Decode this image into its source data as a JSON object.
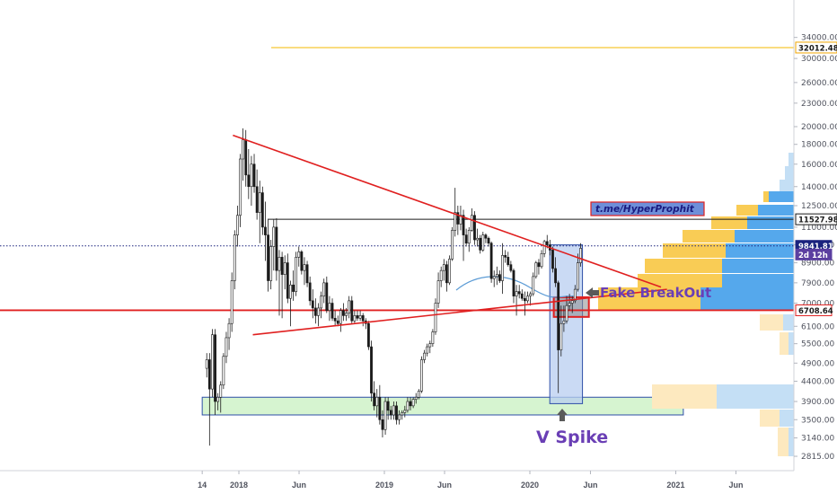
{
  "chart_data": {
    "type": "candlestick",
    "symbol_scale": "log",
    "x_ticks": [
      "14",
      "2018",
      "Jun",
      "2019",
      "Jun",
      "2020",
      "Jun",
      "2021",
      "Jun"
    ],
    "y_ticks": [
      "34000.00",
      "30000.00",
      "26000.00",
      "23000.00",
      "20000.00",
      "18000.00",
      "16000.00",
      "14000.00",
      "12500.00",
      "11000.00",
      "9900.00",
      "8900.00",
      "7900.00",
      "7000.00",
      "6100.00",
      "5500.00",
      "4900.00",
      "4400.00",
      "3900.00",
      "3500.00",
      "3140.00",
      "2815.00"
    ],
    "price_badges": [
      {
        "label": "32012.48",
        "price": 32012,
        "bg": "#ffffff",
        "fg": "#1a1a1a",
        "border": "#f0a500"
      },
      {
        "label": "11527.98",
        "price": 11528,
        "bg": "#ffffff",
        "fg": "#1a1a1a",
        "border": "#1a1a1a"
      },
      {
        "label": "9841.81",
        "price": 9842,
        "bg": "#1a237e",
        "fg": "#ffffff",
        "border": "#1a237e"
      },
      {
        "label": "2d 12h",
        "price": 9350,
        "bg": "#5b3fa0",
        "fg": "#ffffff",
        "border": "#5b3fa0"
      },
      {
        "label": "6708.64",
        "price": 6709,
        "bg": "#ffffff",
        "fg": "#1a1a1a",
        "border": "#e02020"
      }
    ],
    "annotations": {
      "fake_breakout": "Fake BreakOut",
      "v_spike": "V Spike",
      "telegram": "t.me/HyperProphit"
    },
    "levels": [
      {
        "name": "orange",
        "price": 32012,
        "color": "#f5b800"
      },
      {
        "name": "resistance",
        "price": 11528,
        "color": "#1a1a1a"
      },
      {
        "name": "current",
        "price": 9842,
        "color": "#1a237e",
        "style": "dotted"
      },
      {
        "name": "support",
        "price": 6709,
        "color": "#e02020"
      }
    ],
    "trendlines": [
      {
        "from": [
          "2017-12-17",
          19000
        ],
        "to": [
          "2020-11-25",
          7700
        ],
        "color": "#e02020"
      },
      {
        "from": [
          "2018-02-05",
          5800
        ],
        "to": [
          "2020-12-10",
          7600
        ],
        "color": "#e02020"
      }
    ],
    "zones": [
      {
        "name": "demand-zone",
        "from": "2017-10-01",
        "to": "2021-01-20",
        "low": 3600,
        "high": 4000,
        "color": "#c8f0c0"
      },
      {
        "name": "v-spike-box",
        "from": "2020-02-20",
        "to": "2020-05-12",
        "low": 3850,
        "high": 9900,
        "color": "#b8cdf0"
      },
      {
        "name": "fake-breakout-box",
        "from": "2020-03-01",
        "to": "2020-05-28",
        "low": 6450,
        "high": 7250,
        "color": "#8c8c8c"
      }
    ],
    "candles": [
      [
        "2017-10-09",
        4750,
        5200,
        4500,
        5000
      ],
      [
        "2017-10-16",
        5000,
        5200,
        3000,
        4200
      ],
      [
        "2017-10-23",
        4200,
        6000,
        4000,
        5800
      ],
      [
        "2017-10-30",
        5800,
        6000,
        3600,
        3900
      ],
      [
        "2017-11-06",
        3900,
        4100,
        3700,
        4000
      ],
      [
        "2017-11-13",
        4000,
        4400,
        3650,
        4300
      ],
      [
        "2017-11-20",
        4300,
        5200,
        4200,
        5100
      ],
      [
        "2017-11-27",
        5100,
        5900,
        4900,
        5700
      ],
      [
        "2017-12-04",
        5700,
        6400,
        5300,
        6200
      ],
      [
        "2017-12-11",
        6200,
        8400,
        5900,
        8000
      ],
      [
        "2017-12-18",
        8000,
        10800,
        7600,
        10500
      ],
      [
        "2017-12-25",
        10500,
        12500,
        9800,
        11800
      ],
      [
        "2018-01-01",
        11800,
        17000,
        11000,
        16500
      ],
      [
        "2018-01-08",
        16500,
        19800,
        14500,
        18500
      ],
      [
        "2018-01-15",
        18500,
        19600,
        14000,
        15000
      ],
      [
        "2018-01-22",
        15000,
        17500,
        13000,
        14000
      ],
      [
        "2018-01-29",
        14000,
        16800,
        12500,
        16000
      ],
      [
        "2018-02-05",
        16000,
        17000,
        13500,
        14000
      ],
      [
        "2018-02-12",
        14000,
        15500,
        11500,
        12000
      ],
      [
        "2018-02-19",
        12000,
        14500,
        10000,
        13500
      ],
      [
        "2018-02-26",
        13500,
        14000,
        10500,
        11000
      ],
      [
        "2018-03-05",
        11000,
        12800,
        9000,
        10500
      ],
      [
        "2018-03-12",
        10500,
        11500,
        7500,
        8000
      ],
      [
        "2018-03-19",
        8000,
        10200,
        7600,
        9800
      ],
      [
        "2018-03-26",
        9800,
        11500,
        8500,
        11000
      ],
      [
        "2018-04-02",
        11000,
        11600,
        8000,
        8500
      ],
      [
        "2018-04-09",
        8500,
        9600,
        6500,
        9200
      ],
      [
        "2018-04-16",
        9200,
        9500,
        6400,
        8300
      ],
      [
        "2018-04-23",
        8300,
        9300,
        7600,
        8900
      ],
      [
        "2018-04-30",
        8900,
        9400,
        7000,
        7200
      ],
      [
        "2018-05-07",
        7200,
        8000,
        6100,
        7800
      ],
      [
        "2018-05-14",
        7800,
        8500,
        7100,
        7500
      ],
      [
        "2018-05-21",
        7500,
        9500,
        7300,
        9200
      ],
      [
        "2018-05-28",
        9200,
        9800,
        8700,
        9500
      ],
      [
        "2018-06-04",
        9500,
        9600,
        8300,
        8500
      ],
      [
        "2018-06-11",
        8500,
        9200,
        7800,
        8800
      ],
      [
        "2018-06-18",
        8800,
        9000,
        7700,
        7900
      ],
      [
        "2018-06-25",
        7900,
        8200,
        6900,
        7100
      ],
      [
        "2018-07-02",
        7100,
        7600,
        6400,
        6800
      ],
      [
        "2018-07-09",
        6800,
        7200,
        6200,
        6500
      ],
      [
        "2018-07-16",
        6500,
        7000,
        6100,
        6800
      ],
      [
        "2018-07-23",
        6800,
        7500,
        6400,
        7300
      ],
      [
        "2018-07-30",
        7300,
        8100,
        7000,
        7900
      ],
      [
        "2018-08-06",
        7900,
        8200,
        6600,
        6700
      ],
      [
        "2018-08-13",
        6700,
        7300,
        6300,
        7000
      ],
      [
        "2018-08-20",
        7000,
        7200,
        6300,
        6400
      ],
      [
        "2018-08-27",
        6400,
        6700,
        6100,
        6300
      ],
      [
        "2018-09-03",
        6300,
        6500,
        6100,
        6200
      ],
      [
        "2018-09-10",
        6200,
        6800,
        5900,
        6700
      ],
      [
        "2018-09-17",
        6700,
        7000,
        6300,
        6500
      ],
      [
        "2018-09-24",
        6500,
        6800,
        6300,
        6600
      ],
      [
        "2018-10-01",
        6600,
        7300,
        6400,
        7100
      ],
      [
        "2018-10-08",
        7100,
        7300,
        6200,
        6300
      ],
      [
        "2018-10-15",
        6300,
        6700,
        6200,
        6500
      ],
      [
        "2018-10-22",
        6500,
        6700,
        6300,
        6400
      ],
      [
        "2018-10-29",
        6400,
        6700,
        6300,
        6500
      ],
      [
        "2018-11-05",
        6500,
        6600,
        6100,
        6300
      ],
      [
        "2018-11-12",
        6300,
        6400,
        6000,
        6200
      ],
      [
        "2018-11-19",
        6200,
        6300,
        5300,
        5400
      ],
      [
        "2018-11-26",
        5400,
        5600,
        3900,
        4100
      ],
      [
        "2018-12-03",
        4100,
        4400,
        3700,
        3800
      ],
      [
        "2018-12-10",
        3800,
        4200,
        3550,
        4000
      ],
      [
        "2018-12-17",
        4000,
        4300,
        3400,
        3500
      ],
      [
        "2018-12-24",
        3500,
        3700,
        3150,
        3300
      ],
      [
        "2018-12-31",
        3300,
        4000,
        3200,
        3900
      ],
      [
        "2019-01-07",
        3900,
        4000,
        3500,
        3700
      ],
      [
        "2019-01-14",
        3700,
        3800,
        3500,
        3600
      ],
      [
        "2019-01-21",
        3600,
        3900,
        3500,
        3800
      ],
      [
        "2019-01-28",
        3800,
        3900,
        3400,
        3500
      ],
      [
        "2019-02-04",
        3500,
        3700,
        3400,
        3600
      ],
      [
        "2019-02-11",
        3600,
        3700,
        3500,
        3650
      ],
      [
        "2019-02-18",
        3650,
        3800,
        3550,
        3700
      ],
      [
        "2019-02-25",
        3700,
        4000,
        3650,
        3900
      ],
      [
        "2019-03-04",
        3900,
        4000,
        3700,
        3800
      ],
      [
        "2019-03-11",
        3800,
        4000,
        3750,
        3950
      ],
      [
        "2019-03-18",
        3950,
        4100,
        3850,
        4000
      ],
      [
        "2019-03-25",
        4000,
        4200,
        3950,
        4150
      ],
      [
        "2019-04-01",
        4150,
        5100,
        4100,
        5000
      ],
      [
        "2019-04-08",
        5000,
        5300,
        4900,
        5200
      ],
      [
        "2019-04-15",
        5200,
        5500,
        5100,
        5400
      ],
      [
        "2019-04-22",
        5400,
        5600,
        5200,
        5500
      ],
      [
        "2019-04-29",
        5500,
        6000,
        5400,
        5900
      ],
      [
        "2019-05-06",
        5900,
        7200,
        5800,
        7000
      ],
      [
        "2019-05-13",
        7000,
        8400,
        6800,
        8000
      ],
      [
        "2019-05-20",
        8000,
        8700,
        7700,
        8500
      ],
      [
        "2019-05-27",
        8500,
        9100,
        8000,
        8800
      ],
      [
        "2019-06-03",
        8800,
        9000,
        7500,
        7900
      ],
      [
        "2019-06-10",
        7900,
        9300,
        7800,
        9100
      ],
      [
        "2019-06-17",
        9100,
        11000,
        9000,
        10800
      ],
      [
        "2019-06-24",
        10800,
        13900,
        10400,
        12000
      ],
      [
        "2019-07-01",
        12000,
        12500,
        10500,
        11200
      ],
      [
        "2019-07-08",
        11200,
        12500,
        10800,
        11800
      ],
      [
        "2019-07-15",
        11800,
        12200,
        9000,
        10500
      ],
      [
        "2019-07-22",
        10500,
        10900,
        9800,
        10000
      ],
      [
        "2019-07-29",
        10000,
        11000,
        9500,
        10800
      ],
      [
        "2019-08-05",
        10800,
        12300,
        10700,
        11800
      ],
      [
        "2019-08-12",
        11800,
        12100,
        9900,
        10200
      ],
      [
        "2019-08-19",
        10200,
        10900,
        9800,
        10300
      ],
      [
        "2019-08-26",
        10300,
        10500,
        9400,
        9600
      ],
      [
        "2019-09-02",
        9600,
        10700,
        9500,
        10500
      ],
      [
        "2019-09-09",
        10500,
        10600,
        10000,
        10300
      ],
      [
        "2019-09-16",
        10300,
        10400,
        9800,
        10000
      ],
      [
        "2019-09-23",
        10000,
        10100,
        7900,
        8100
      ],
      [
        "2019-09-30",
        8100,
        8500,
        7700,
        8200
      ],
      [
        "2019-10-07",
        8200,
        8700,
        7800,
        8300
      ],
      [
        "2019-10-14",
        8300,
        8500,
        7900,
        8000
      ],
      [
        "2019-10-21",
        8000,
        10000,
        7400,
        9300
      ],
      [
        "2019-10-28",
        9300,
        9600,
        8900,
        9200
      ],
      [
        "2019-11-04",
        9200,
        9500,
        8700,
        8800
      ],
      [
        "2019-11-11",
        8800,
        9000,
        8400,
        8500
      ],
      [
        "2019-11-18",
        8500,
        8600,
        7000,
        7300
      ],
      [
        "2019-11-25",
        7300,
        7800,
        6500,
        7500
      ],
      [
        "2019-12-02",
        7500,
        7800,
        7200,
        7400
      ],
      [
        "2019-12-09",
        7400,
        7600,
        7100,
        7200
      ],
      [
        "2019-12-16",
        7200,
        7500,
        6500,
        7100
      ],
      [
        "2019-12-23",
        7100,
        7500,
        7000,
        7300
      ],
      [
        "2019-12-30",
        7300,
        7500,
        6900,
        7400
      ],
      [
        "2020-01-06",
        7400,
        8400,
        7300,
        8200
      ],
      [
        "2020-01-13",
        8200,
        9000,
        8100,
        8900
      ],
      [
        "2020-01-20",
        8900,
        9100,
        8300,
        8700
      ],
      [
        "2020-01-27",
        8700,
        9600,
        8600,
        9400
      ],
      [
        "2020-02-03",
        9400,
        10200,
        9200,
        10100
      ],
      [
        "2020-02-10",
        10100,
        10500,
        9700,
        9900
      ],
      [
        "2020-02-17",
        9900,
        10200,
        9300,
        9600
      ],
      [
        "2020-02-24",
        9600,
        9800,
        8400,
        8600
      ],
      [
        "2020-03-02",
        8600,
        9200,
        7700,
        7900
      ],
      [
        "2020-03-09",
        7900,
        8000,
        4100,
        5300
      ],
      [
        "2020-03-16",
        5300,
        6900,
        5100,
        6200
      ],
      [
        "2020-03-23",
        6200,
        6900,
        5900,
        6300
      ],
      [
        "2020-03-30",
        6300,
        7300,
        6200,
        6900
      ],
      [
        "2020-04-06",
        6900,
        7400,
        6700,
        7000
      ],
      [
        "2020-04-13",
        7000,
        7300,
        6600,
        7100
      ],
      [
        "2020-04-20",
        7100,
        7800,
        7000,
        7600
      ],
      [
        "2020-04-27",
        7600,
        9400,
        7500,
        8900
      ],
      [
        "2020-05-04",
        8900,
        10000,
        8700,
        9700
      ]
    ]
  }
}
